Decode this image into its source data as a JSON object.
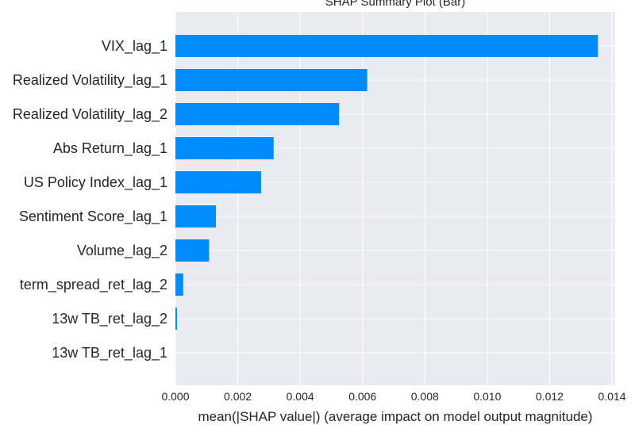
{
  "chart_data": {
    "type": "bar",
    "orientation": "horizontal",
    "title": "SHAP Summary Plot (Bar)",
    "xlabel": "mean(|SHAP value|) (average impact on model output magnitude)",
    "ylabel": "",
    "categories": [
      "VIX_lag_1",
      "Realized Volatility_lag_1",
      "Realized Volatility_lag_2",
      "Abs Return_lag_1",
      "US Policy Index_lag_1",
      "Sentiment Score_lag_1",
      "Volume_lag_2",
      "term_spread_ret_lag_2",
      "13w TB_ret_lag_2",
      "13w TB_ret_lag_1"
    ],
    "values": [
      0.01355,
      0.00615,
      0.00525,
      0.00315,
      0.00275,
      0.0013,
      0.00108,
      0.00025,
      5e-05,
      0.0
    ],
    "xlim": [
      0,
      0.0141
    ],
    "xticks": [
      "0.000",
      "0.002",
      "0.004",
      "0.006",
      "0.008",
      "0.010",
      "0.012",
      "0.014"
    ],
    "xtick_values": [
      0,
      0.002,
      0.004,
      0.006,
      0.008,
      0.01,
      0.012,
      0.014
    ],
    "grid": true,
    "bar_color": "#008bfb",
    "background_color": "#eaeaf2"
  }
}
